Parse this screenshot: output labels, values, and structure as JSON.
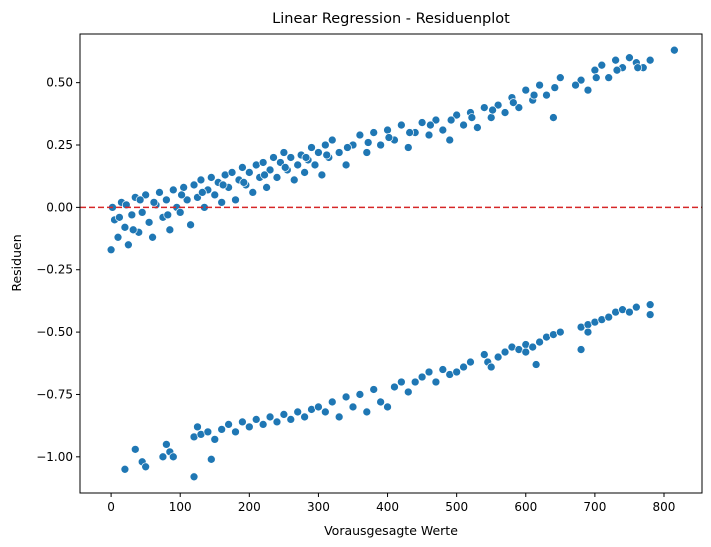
{
  "chart_data": {
    "type": "scatter",
    "title": "Linear Regression - Residuenplot",
    "xlabel": "Vorausgesagte Werte",
    "ylabel": "Residuen",
    "xlim": [
      -45,
      855
    ],
    "ylim": [
      -1.145,
      0.695
    ],
    "xticks": [
      0,
      100,
      200,
      300,
      400,
      500,
      600,
      700,
      800
    ],
    "xtick_labels": [
      "0",
      "100",
      "200",
      "300",
      "400",
      "500",
      "600",
      "700",
      "800"
    ],
    "yticks": [
      0.5,
      0.25,
      0.0,
      -0.25,
      -0.5,
      -0.75,
      -1.0
    ],
    "ytick_labels": [
      "0.50",
      "0.25",
      "0.00",
      "−0.25",
      "−0.50",
      "−0.75",
      "−1.00"
    ],
    "reference_line": {
      "y": 0.0,
      "style": "dashed",
      "color": "#d62728"
    },
    "grid": false,
    "legend": "none",
    "marker_color": "#1f77b4",
    "series": [
      {
        "points": [
          [
            0,
            -0.17
          ],
          [
            5,
            -0.05
          ],
          [
            10,
            -0.12
          ],
          [
            15,
            0.02
          ],
          [
            20,
            -0.08
          ],
          [
            25,
            -0.15
          ],
          [
            30,
            -0.03
          ],
          [
            35,
            0.04
          ],
          [
            40,
            -0.1
          ],
          [
            45,
            -0.02
          ],
          [
            50,
            0.05
          ],
          [
            55,
            -0.06
          ],
          [
            60,
            -0.12
          ],
          [
            65,
            0.01
          ],
          [
            70,
            0.06
          ],
          [
            75,
            -0.04
          ],
          [
            80,
            0.03
          ],
          [
            85,
            -0.09
          ],
          [
            90,
            0.07
          ],
          [
            95,
            0.0
          ],
          [
            100,
            -0.02
          ],
          [
            105,
            0.08
          ],
          [
            110,
            0.03
          ],
          [
            115,
            -0.07
          ],
          [
            120,
            0.09
          ],
          [
            125,
            0.04
          ],
          [
            130,
            0.11
          ],
          [
            135,
            0.0
          ],
          [
            140,
            0.07
          ],
          [
            145,
            0.12
          ],
          [
            150,
            0.05
          ],
          [
            155,
            0.1
          ],
          [
            160,
            0.02
          ],
          [
            165,
            0.13
          ],
          [
            170,
            0.08
          ],
          [
            175,
            0.14
          ],
          [
            180,
            0.03
          ],
          [
            185,
            0.11
          ],
          [
            190,
            0.16
          ],
          [
            195,
            0.09
          ],
          [
            200,
            0.14
          ],
          [
            205,
            0.06
          ],
          [
            210,
            0.17
          ],
          [
            215,
            0.12
          ],
          [
            220,
            0.18
          ],
          [
            225,
            0.08
          ],
          [
            230,
            0.15
          ],
          [
            235,
            0.2
          ],
          [
            240,
            0.12
          ],
          [
            245,
            0.18
          ],
          [
            250,
            0.22
          ],
          [
            255,
            0.15
          ],
          [
            260,
            0.2
          ],
          [
            265,
            0.11
          ],
          [
            270,
            0.17
          ],
          [
            275,
            0.21
          ],
          [
            280,
            0.14
          ],
          [
            285,
            0.19
          ],
          [
            290,
            0.24
          ],
          [
            295,
            0.17
          ],
          [
            300,
            0.22
          ],
          [
            305,
            0.13
          ],
          [
            310,
            0.25
          ],
          [
            315,
            0.2
          ],
          [
            320,
            0.27
          ],
          [
            330,
            0.22
          ],
          [
            340,
            0.17
          ],
          [
            350,
            0.25
          ],
          [
            360,
            0.29
          ],
          [
            370,
            0.22
          ],
          [
            380,
            0.3
          ],
          [
            390,
            0.25
          ],
          [
            400,
            0.31
          ],
          [
            410,
            0.27
          ],
          [
            420,
            0.33
          ],
          [
            430,
            0.24
          ],
          [
            440,
            0.3
          ],
          [
            450,
            0.34
          ],
          [
            460,
            0.29
          ],
          [
            470,
            0.35
          ],
          [
            480,
            0.31
          ],
          [
            490,
            0.27
          ],
          [
            500,
            0.37
          ],
          [
            510,
            0.33
          ],
          [
            520,
            0.38
          ],
          [
            530,
            0.32
          ],
          [
            540,
            0.4
          ],
          [
            550,
            0.36
          ],
          [
            560,
            0.41
          ],
          [
            570,
            0.38
          ],
          [
            580,
            0.44
          ],
          [
            590,
            0.4
          ],
          [
            600,
            0.47
          ],
          [
            610,
            0.43
          ],
          [
            620,
            0.49
          ],
          [
            630,
            0.45
          ],
          [
            640,
            0.36
          ],
          [
            650,
            0.52
          ],
          [
            680,
            0.51
          ],
          [
            690,
            0.47
          ],
          [
            700,
            0.55
          ],
          [
            710,
            0.57
          ],
          [
            720,
            0.52
          ],
          [
            730,
            0.59
          ],
          [
            740,
            0.56
          ],
          [
            750,
            0.6
          ],
          [
            760,
            0.58
          ],
          [
            770,
            0.56
          ],
          [
            780,
            0.59
          ],
          [
            815,
            0.63
          ],
          [
            2,
            0.0
          ],
          [
            12,
            -0.04
          ],
          [
            22,
            0.01
          ],
          [
            32,
            -0.09
          ],
          [
            42,
            0.03
          ],
          [
            62,
            0.02
          ],
          [
            82,
            -0.03
          ],
          [
            102,
            0.05
          ],
          [
            132,
            0.06
          ],
          [
            162,
            0.09
          ],
          [
            192,
            0.1
          ],
          [
            222,
            0.13
          ],
          [
            252,
            0.16
          ],
          [
            282,
            0.2
          ],
          [
            312,
            0.21
          ],
          [
            342,
            0.24
          ],
          [
            372,
            0.26
          ],
          [
            402,
            0.28
          ],
          [
            432,
            0.3
          ],
          [
            462,
            0.33
          ],
          [
            492,
            0.35
          ],
          [
            522,
            0.36
          ],
          [
            552,
            0.39
          ],
          [
            582,
            0.42
          ],
          [
            612,
            0.45
          ],
          [
            642,
            0.48
          ],
          [
            672,
            0.49
          ],
          [
            702,
            0.52
          ],
          [
            732,
            0.55
          ],
          [
            762,
            0.56
          ],
          [
            120,
            -0.92
          ],
          [
            125,
            -0.88
          ],
          [
            130,
            -0.91
          ],
          [
            140,
            -0.9
          ],
          [
            150,
            -0.93
          ],
          [
            160,
            -0.89
          ],
          [
            170,
            -0.87
          ],
          [
            180,
            -0.9
          ],
          [
            190,
            -0.86
          ],
          [
            200,
            -0.88
          ],
          [
            210,
            -0.85
          ],
          [
            220,
            -0.87
          ],
          [
            230,
            -0.84
          ],
          [
            240,
            -0.86
          ],
          [
            250,
            -0.83
          ],
          [
            260,
            -0.85
          ],
          [
            270,
            -0.82
          ],
          [
            280,
            -0.84
          ],
          [
            290,
            -0.81
          ],
          [
            300,
            -0.8
          ],
          [
            310,
            -0.82
          ],
          [
            320,
            -0.78
          ],
          [
            330,
            -0.84
          ],
          [
            340,
            -0.76
          ],
          [
            350,
            -0.8
          ],
          [
            360,
            -0.75
          ],
          [
            370,
            -0.82
          ],
          [
            380,
            -0.73
          ],
          [
            390,
            -0.78
          ],
          [
            400,
            -0.8
          ],
          [
            410,
            -0.72
          ],
          [
            420,
            -0.7
          ],
          [
            430,
            -0.74
          ],
          [
            440,
            -0.7
          ],
          [
            450,
            -0.68
          ],
          [
            460,
            -0.66
          ],
          [
            470,
            -0.7
          ],
          [
            480,
            -0.65
          ],
          [
            490,
            -0.67
          ],
          [
            500,
            -0.66
          ],
          [
            510,
            -0.64
          ],
          [
            520,
            -0.62
          ],
          [
            540,
            -0.59
          ],
          [
            545,
            -0.62
          ],
          [
            550,
            -0.64
          ],
          [
            560,
            -0.6
          ],
          [
            570,
            -0.58
          ],
          [
            580,
            -0.56
          ],
          [
            590,
            -0.57
          ],
          [
            600,
            -0.55
          ],
          [
            610,
            -0.56
          ],
          [
            615,
            -0.63
          ],
          [
            620,
            -0.54
          ],
          [
            630,
            -0.52
          ],
          [
            640,
            -0.51
          ],
          [
            650,
            -0.5
          ],
          [
            680,
            -0.48
          ],
          [
            690,
            -0.47
          ],
          [
            700,
            -0.46
          ],
          [
            710,
            -0.45
          ],
          [
            720,
            -0.44
          ],
          [
            730,
            -0.42
          ],
          [
            740,
            -0.41
          ],
          [
            750,
            -0.42
          ],
          [
            760,
            -0.4
          ],
          [
            780,
            -0.39
          ],
          [
            780,
            -0.43
          ],
          [
            690,
            -0.5
          ],
          [
            680,
            -0.57
          ],
          [
            600,
            -0.58
          ],
          [
            20,
            -1.05
          ],
          [
            35,
            -0.97
          ],
          [
            45,
            -1.02
          ],
          [
            50,
            -1.04
          ],
          [
            75,
            -1.0
          ],
          [
            80,
            -0.95
          ],
          [
            85,
            -0.98
          ],
          [
            90,
            -1.0
          ],
          [
            120,
            -1.08
          ],
          [
            145,
            -1.01
          ]
        ]
      }
    ]
  }
}
